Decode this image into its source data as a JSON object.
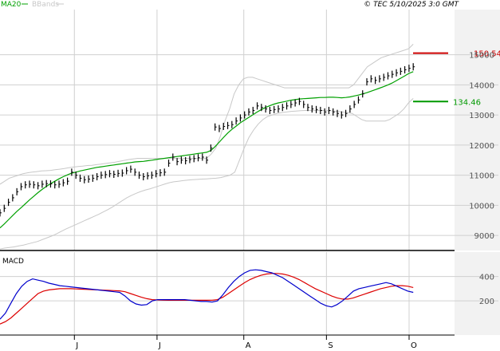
{
  "header": {
    "legend_ma": "MA20",
    "legend_bb": "BBands",
    "copyright": "© TEC 5/10/2025 3:0 GMT"
  },
  "colors": {
    "ma": "#00a000",
    "bbands": "#c8c8c8",
    "price_bars": "#000000",
    "grid": "#d0d0d0",
    "panel_bg": "#f2f2f2",
    "macd_line": "#0000cc",
    "signal_line": "#dd0000",
    "resistance": "#cc0000",
    "support": "#009900"
  },
  "chart_data": [
    {
      "type": "line",
      "name": "price-panel",
      "y_axis": {
        "range": [
          8500,
          16500
        ],
        "ticks": [
          9000,
          10000,
          11000,
          12000,
          13000,
          14000,
          15000
        ],
        "tick_labels": [
          "9000",
          "10000",
          "11000",
          "12000",
          "13000",
          "14000",
          "15000"
        ]
      },
      "x_axis": {
        "range": [
          0,
          110
        ],
        "months": [
          {
            "label": "J",
            "x": 18
          },
          {
            "label": "J",
            "x": 38
          },
          {
            "label": "A",
            "x": 59
          },
          {
            "label": "S",
            "x": 79
          },
          {
            "label": "O",
            "x": 99
          }
        ]
      },
      "series": [
        {
          "name": "MA20",
          "values": [
            9250,
            9380,
            9520,
            9660,
            9800,
            9920,
            10050,
            10180,
            10300,
            10420,
            10530,
            10630,
            10720,
            10800,
            10880,
            10950,
            11010,
            11070,
            11100,
            11140,
            11170,
            11200,
            11230,
            11260,
            11280,
            11300,
            11320,
            11340,
            11360,
            11380,
            11400,
            11420,
            11440,
            11450,
            11460,
            11480,
            11500,
            11520,
            11540,
            11560,
            11580,
            11600,
            11620,
            11640,
            11660,
            11680,
            11700,
            11720,
            11740,
            11760,
            11820,
            11950,
            12100,
            12250,
            12400,
            12520,
            12630,
            12740,
            12830,
            12920,
            13010,
            13100,
            13180,
            13250,
            13310,
            13360,
            13400,
            13430,
            13460,
            13490,
            13510,
            13530,
            13540,
            13550,
            13560,
            13570,
            13580,
            13580,
            13590,
            13590,
            13580,
            13570,
            13580,
            13600,
            13630,
            13660,
            13700,
            13740,
            13790,
            13840,
            13890,
            13940,
            14000,
            14060,
            14140,
            14220,
            14300,
            14380,
            14440
          ]
        },
        {
          "name": "BB upper",
          "values": [
            10700,
            10800,
            10900,
            10950,
            11000,
            11050,
            11080,
            11100,
            11120,
            11140,
            11150,
            11160,
            11180,
            11200,
            11220,
            11250,
            11270,
            11290,
            11300,
            11320,
            11330,
            11350,
            11370,
            11390,
            11410,
            11430,
            11460,
            11490,
            11520,
            11540,
            11560,
            11560,
            11560,
            11560,
            11560,
            11560,
            11560,
            11560,
            11560,
            11560,
            11560,
            11560,
            11560,
            11560,
            11560,
            11560,
            11700,
            11900,
            12300,
            12800,
            13200,
            13700,
            14000,
            14200,
            14250,
            14250,
            14200,
            14150,
            14100,
            14050,
            14000,
            13950,
            13900,
            13900,
            13900,
            13900,
            13900,
            13900,
            13900,
            13900,
            13900,
            13900,
            13900,
            13900,
            13900,
            13900,
            13900,
            14000,
            14200,
            14400,
            14600,
            14700,
            14800,
            14900,
            14950,
            15000,
            15050,
            15100,
            15150,
            15200,
            15350
          ]
        },
        {
          "name": "BB lower",
          "values": [
            8550,
            8580,
            8600,
            8620,
            8650,
            8680,
            8720,
            8760,
            8800,
            8860,
            8920,
            8980,
            9050,
            9130,
            9210,
            9280,
            9350,
            9420,
            9490,
            9560,
            9630,
            9700,
            9780,
            9860,
            9950,
            10050,
            10150,
            10250,
            10330,
            10400,
            10460,
            10510,
            10550,
            10600,
            10650,
            10700,
            10750,
            10780,
            10800,
            10820,
            10840,
            10850,
            10860,
            10870,
            10880,
            10890,
            10900,
            10920,
            10960,
            11000,
            11100,
            11500,
            11900,
            12250,
            12500,
            12700,
            12850,
            12950,
            13000,
            13050,
            13080,
            13100,
            13120,
            13130,
            13140,
            13150,
            13150,
            13150,
            13150,
            13150,
            13140,
            13130,
            13120,
            13100,
            13080,
            13050,
            12950,
            12850,
            12800,
            12800,
            12800,
            12800,
            12800,
            12850,
            12950,
            13050,
            13200,
            13400,
            13550
          ]
        },
        {
          "name": "Close",
          "values": [
            9750,
            9900,
            10100,
            10250,
            10450,
            10620,
            10680,
            10700,
            10680,
            10650,
            10700,
            10720,
            10710,
            10680,
            10700,
            10750,
            10800,
            11100,
            11000,
            10900,
            10850,
            10870,
            10900,
            10950,
            11000,
            11020,
            11050,
            11030,
            11060,
            11070,
            11150,
            11200,
            11100,
            11000,
            10950,
            10980,
            11000,
            11050,
            11080,
            11100,
            11400,
            11600,
            11450,
            11500,
            11480,
            11520,
            11550,
            11580,
            11600,
            11500,
            11900,
            12600,
            12550,
            12620,
            12650,
            12680,
            12800,
            12900,
            13000,
            13100,
            13150,
            13300,
            13250,
            13200,
            13150,
            13180,
            13200,
            13250,
            13300,
            13350,
            13400,
            13450,
            13350,
            13250,
            13200,
            13180,
            13150,
            13100,
            13150,
            13100,
            13050,
            13000,
            13050,
            13200,
            13350,
            13500,
            13700,
            14100,
            14200,
            14150,
            14200,
            14250,
            14300,
            14350,
            14400,
            14450,
            14500,
            14550,
            14600
          ]
        }
      ],
      "levels": [
        {
          "name": "resistance",
          "value": 15054,
          "label": "150.54"
        },
        {
          "name": "support",
          "value": 13446,
          "label": "134.46"
        }
      ]
    },
    {
      "type": "line",
      "name": "macd-panel",
      "title": "MACD",
      "y_axis": {
        "range": [
          -80,
          600
        ],
        "ticks": [
          200,
          400
        ],
        "tick_labels": [
          "200",
          "400"
        ]
      },
      "series": [
        {
          "name": "MACD",
          "values": [
            50,
            100,
            180,
            260,
            320,
            360,
            380,
            370,
            360,
            345,
            335,
            325,
            320,
            315,
            310,
            305,
            300,
            295,
            290,
            285,
            280,
            275,
            270,
            240,
            200,
            175,
            165,
            170,
            200,
            210,
            210,
            210,
            210,
            210,
            210,
            205,
            200,
            195,
            195,
            190,
            200,
            250,
            310,
            360,
            400,
            430,
            450,
            455,
            450,
            440,
            430,
            410,
            390,
            360,
            330,
            300,
            270,
            240,
            210,
            180,
            160,
            150,
            170,
            200,
            240,
            280,
            300,
            310,
            320,
            330,
            340,
            350,
            340,
            320,
            300,
            280,
            270
          ]
        },
        {
          "name": "Signal",
          "values": [
            10,
            30,
            60,
            100,
            140,
            180,
            220,
            260,
            280,
            290,
            295,
            300,
            300,
            300,
            298,
            296,
            294,
            292,
            290,
            288,
            286,
            284,
            282,
            275,
            260,
            245,
            230,
            218,
            210,
            208,
            206,
            205,
            205,
            205,
            205,
            205,
            205,
            205,
            205,
            205,
            210,
            230,
            260,
            290,
            320,
            350,
            375,
            395,
            410,
            420,
            425,
            425,
            420,
            410,
            395,
            375,
            350,
            325,
            300,
            280,
            260,
            240,
            225,
            215,
            215,
            225,
            240,
            255,
            270,
            285,
            300,
            310,
            320,
            325,
            325,
            320,
            310
          ]
        }
      ]
    }
  ]
}
